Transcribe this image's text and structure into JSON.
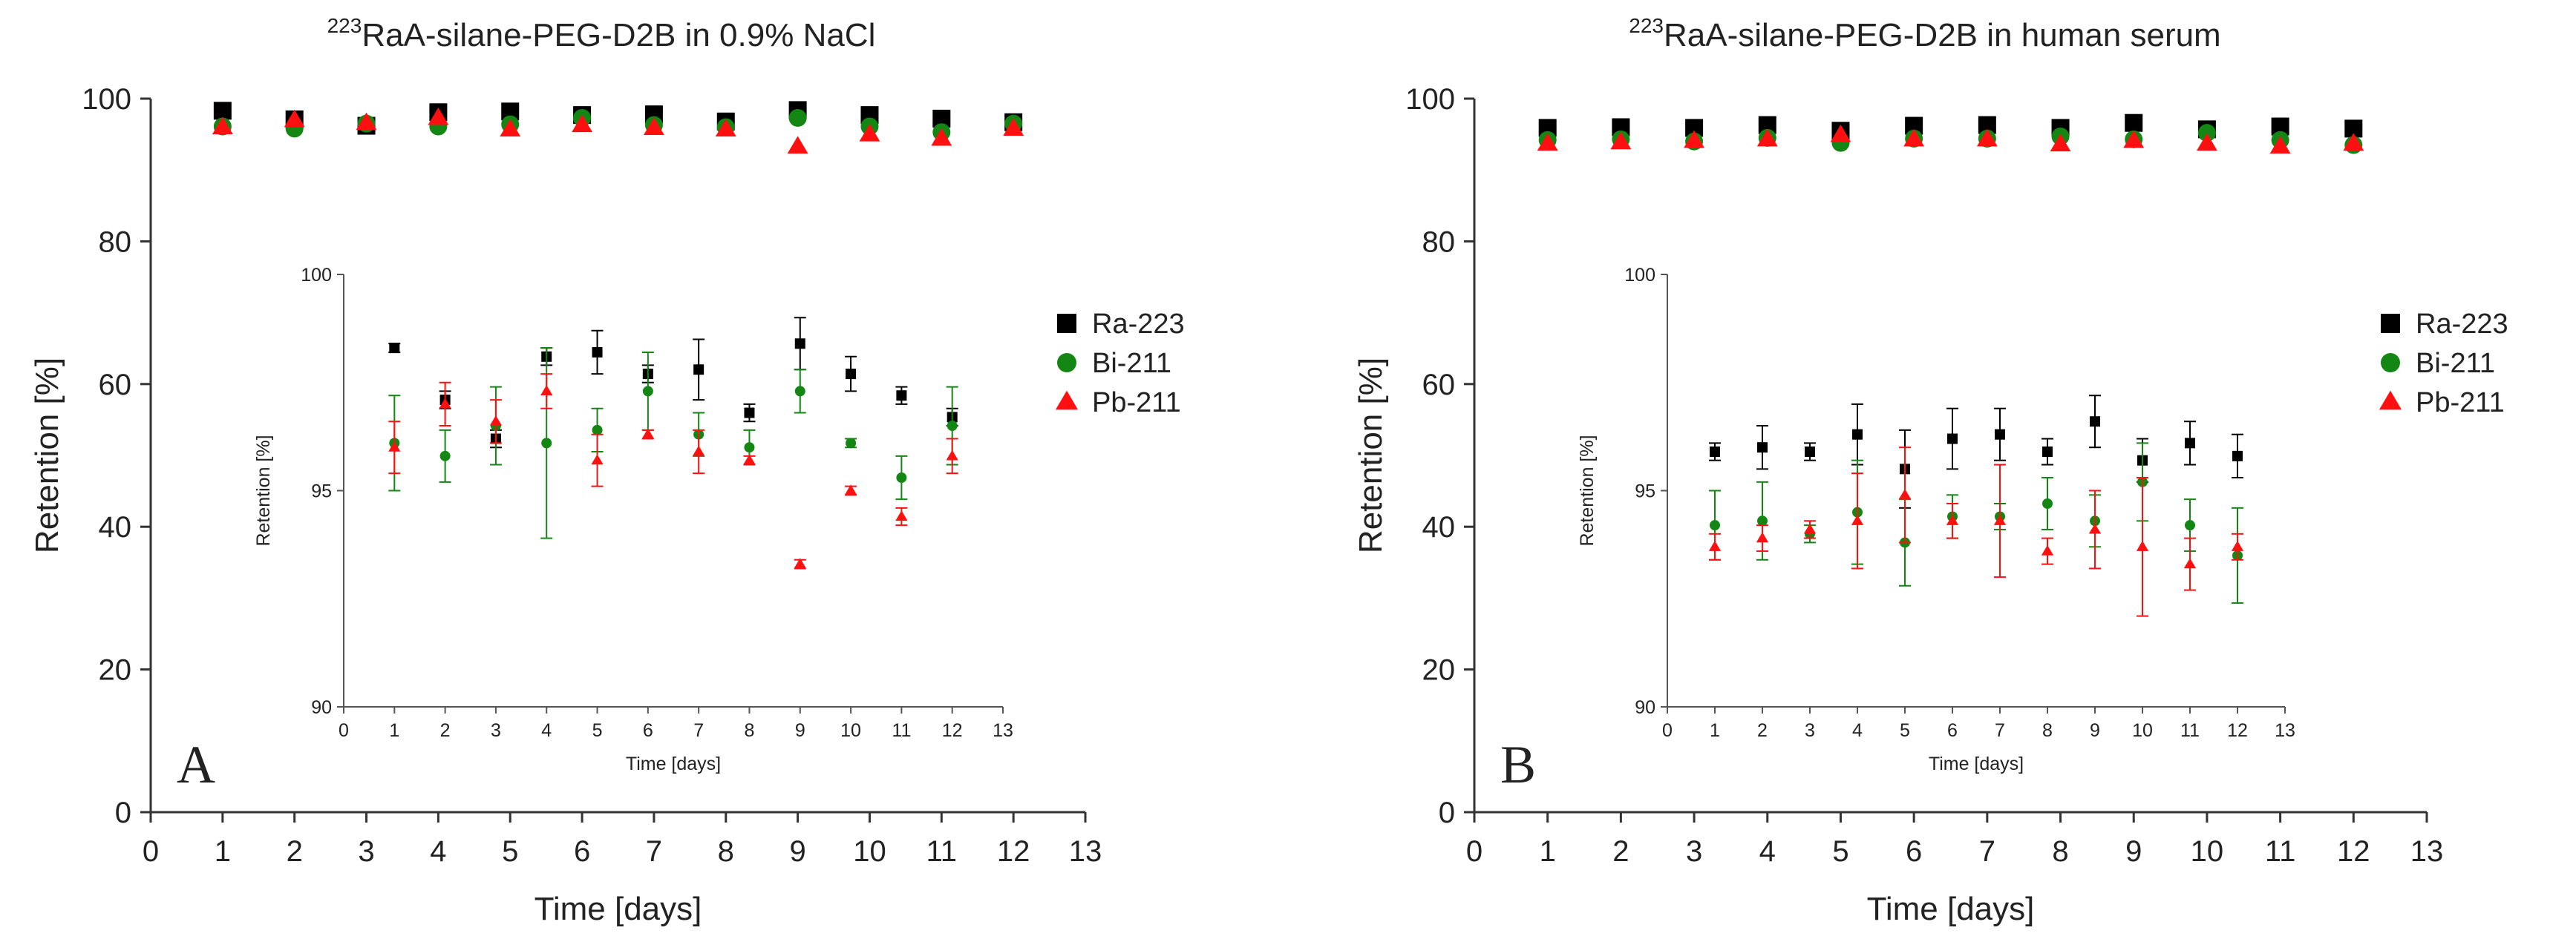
{
  "chart_data": [
    {
      "panel_label": "A",
      "type": "scatter",
      "title_sup": "223",
      "title": "RaA-silane-PEG-D2B in 0.9% NaCl",
      "xlabel": "Time [days]",
      "ylabel": "Retention [%]",
      "xlim": [
        0,
        13
      ],
      "ylim": [
        0,
        100
      ],
      "xticks": [
        0,
        1,
        2,
        3,
        4,
        5,
        6,
        7,
        8,
        9,
        10,
        11,
        12,
        13
      ],
      "yticks": [
        0,
        20,
        40,
        60,
        80,
        100
      ],
      "legend_placement": "right",
      "grid": false,
      "series": [
        {
          "name": "Ra-223",
          "marker": "square",
          "color": "#000000",
          "x": [
            1,
            2,
            3,
            4,
            5,
            6,
            7,
            8,
            9,
            10,
            11,
            12
          ],
          "y": [
            98.3,
            97.1,
            96.2,
            98.1,
            98.2,
            97.7,
            97.8,
            96.8,
            98.4,
            97.7,
            97.2,
            96.7
          ]
        },
        {
          "name": "Bi-211",
          "marker": "circle",
          "color": "#138613",
          "x": [
            1,
            2,
            3,
            4,
            5,
            6,
            7,
            8,
            9,
            10,
            11,
            12
          ],
          "y": [
            96.1,
            95.8,
            96.5,
            96.1,
            96.4,
            97.3,
            96.3,
            96.0,
            97.3,
            96.1,
            95.3,
            96.5
          ]
        },
        {
          "name": "Pb-211",
          "marker": "triangle",
          "color": "#ff1010",
          "x": [
            1,
            2,
            3,
            4,
            5,
            6,
            7,
            8,
            9,
            10,
            11,
            12
          ],
          "y": [
            96.0,
            97.0,
            96.6,
            97.3,
            95.7,
            96.3,
            95.9,
            95.7,
            93.3,
            95.0,
            94.4,
            95.8
          ]
        }
      ],
      "inset": {
        "xlabel": "Time [days]",
        "ylabel": "Retention [%]",
        "xlim": [
          0,
          13
        ],
        "ylim": [
          90,
          100
        ],
        "xticks": [
          0,
          1,
          2,
          3,
          4,
          5,
          6,
          7,
          8,
          9,
          10,
          11,
          12,
          13
        ],
        "yticks": [
          90,
          95,
          100
        ],
        "series": [
          {
            "name": "Ra-223",
            "x": [
              1,
              2,
              3,
              4,
              5,
              6,
              7,
              8,
              9,
              10,
              11,
              12
            ],
            "y": [
              98.3,
              97.1,
              96.2,
              98.1,
              98.2,
              97.7,
              97.8,
              96.8,
              98.4,
              97.7,
              97.2,
              96.7
            ],
            "err": [
              0.1,
              0.2,
              0.2,
              0.2,
              0.5,
              0.2,
              0.7,
              0.2,
              0.6,
              0.4,
              0.2,
              0.2
            ]
          },
          {
            "name": "Bi-211",
            "x": [
              1,
              2,
              3,
              4,
              5,
              6,
              7,
              8,
              9,
              10,
              11,
              12
            ],
            "y": [
              96.1,
              95.8,
              96.5,
              96.1,
              96.4,
              97.3,
              96.3,
              96.0,
              97.3,
              96.1,
              95.3,
              96.5
            ],
            "err": [
              1.1,
              0.6,
              0.9,
              2.2,
              0.5,
              0.9,
              0.5,
              0.4,
              0.5,
              0.1,
              0.5,
              0.9
            ]
          },
          {
            "name": "Pb-211",
            "x": [
              1,
              2,
              3,
              4,
              5,
              6,
              7,
              8,
              9,
              10,
              11,
              12
            ],
            "y": [
              96.0,
              97.0,
              96.6,
              97.3,
              95.7,
              96.3,
              95.9,
              95.7,
              93.3,
              95.0,
              94.4,
              95.8
            ],
            "err": [
              0.6,
              0.5,
              0.5,
              0.4,
              0.6,
              0.1,
              0.5,
              0.1,
              0.1,
              0.1,
              0.2,
              0.4
            ]
          }
        ]
      }
    },
    {
      "panel_label": "B",
      "type": "scatter",
      "title_sup": "223",
      "title": "RaA-silane-PEG-D2B in human serum",
      "xlabel": "Time [days]",
      "ylabel": "Retention [%]",
      "xlim": [
        0,
        13
      ],
      "ylim": [
        0,
        100
      ],
      "xticks": [
        0,
        1,
        2,
        3,
        4,
        5,
        6,
        7,
        8,
        9,
        10,
        11,
        12,
        13
      ],
      "yticks": [
        0,
        20,
        40,
        60,
        80,
        100
      ],
      "legend_placement": "right",
      "grid": false,
      "series": [
        {
          "name": "Ra-223",
          "marker": "square",
          "color": "#000000",
          "x": [
            1,
            2,
            3,
            4,
            5,
            6,
            7,
            8,
            9,
            10,
            11,
            12
          ],
          "y": [
            95.9,
            96.0,
            95.9,
            96.3,
            95.5,
            96.2,
            96.3,
            95.9,
            96.6,
            95.7,
            96.1,
            95.8
          ]
        },
        {
          "name": "Bi-211",
          "marker": "circle",
          "color": "#138613",
          "x": [
            1,
            2,
            3,
            4,
            5,
            6,
            7,
            8,
            9,
            10,
            11,
            12
          ],
          "y": [
            94.2,
            94.3,
            94.0,
            94.5,
            93.8,
            94.4,
            94.4,
            94.7,
            94.3,
            95.2,
            94.2,
            93.5
          ]
        },
        {
          "name": "Pb-211",
          "marker": "triangle",
          "color": "#ff1010",
          "x": [
            1,
            2,
            3,
            4,
            5,
            6,
            7,
            8,
            9,
            10,
            11,
            12
          ],
          "y": [
            93.7,
            93.9,
            94.1,
            94.3,
            94.9,
            94.3,
            94.3,
            93.6,
            94.1,
            93.7,
            93.3,
            93.7
          ]
        }
      ],
      "inset": {
        "xlabel": "Time [days]",
        "ylabel": "Retention [%]",
        "xlim": [
          0,
          13
        ],
        "ylim": [
          90,
          100
        ],
        "xticks": [
          0,
          1,
          2,
          3,
          4,
          5,
          6,
          7,
          8,
          9,
          10,
          11,
          12,
          13
        ],
        "yticks": [
          90,
          95,
          100
        ],
        "series": [
          {
            "name": "Ra-223",
            "x": [
              1,
              2,
              3,
              4,
              5,
              6,
              7,
              8,
              9,
              10,
              11,
              12
            ],
            "y": [
              95.9,
              96.0,
              95.9,
              96.3,
              95.5,
              96.2,
              96.3,
              95.9,
              96.6,
              95.7,
              96.1,
              95.8
            ],
            "err": [
              0.2,
              0.5,
              0.2,
              0.7,
              0.9,
              0.7,
              0.6,
              0.3,
              0.6,
              0.5,
              0.5,
              0.5
            ]
          },
          {
            "name": "Bi-211",
            "x": [
              1,
              2,
              3,
              4,
              5,
              6,
              7,
              8,
              9,
              10,
              11,
              12
            ],
            "y": [
              94.2,
              94.3,
              94.0,
              94.5,
              93.8,
              94.4,
              94.4,
              94.7,
              94.3,
              95.2,
              94.2,
              93.5
            ],
            "err": [
              0.8,
              0.9,
              0.2,
              1.2,
              1.0,
              0.5,
              0.3,
              0.6,
              0.6,
              0.9,
              0.6,
              1.1
            ]
          },
          {
            "name": "Pb-211",
            "x": [
              1,
              2,
              3,
              4,
              5,
              6,
              7,
              8,
              9,
              10,
              11,
              12
            ],
            "y": [
              93.7,
              93.9,
              94.1,
              94.3,
              94.9,
              94.3,
              94.3,
              93.6,
              94.1,
              93.7,
              93.3,
              93.7
            ],
            "err": [
              0.3,
              0.3,
              0.2,
              1.1,
              1.1,
              0.4,
              1.3,
              0.3,
              0.9,
              1.6,
              0.6,
              0.3
            ]
          }
        ]
      }
    }
  ]
}
